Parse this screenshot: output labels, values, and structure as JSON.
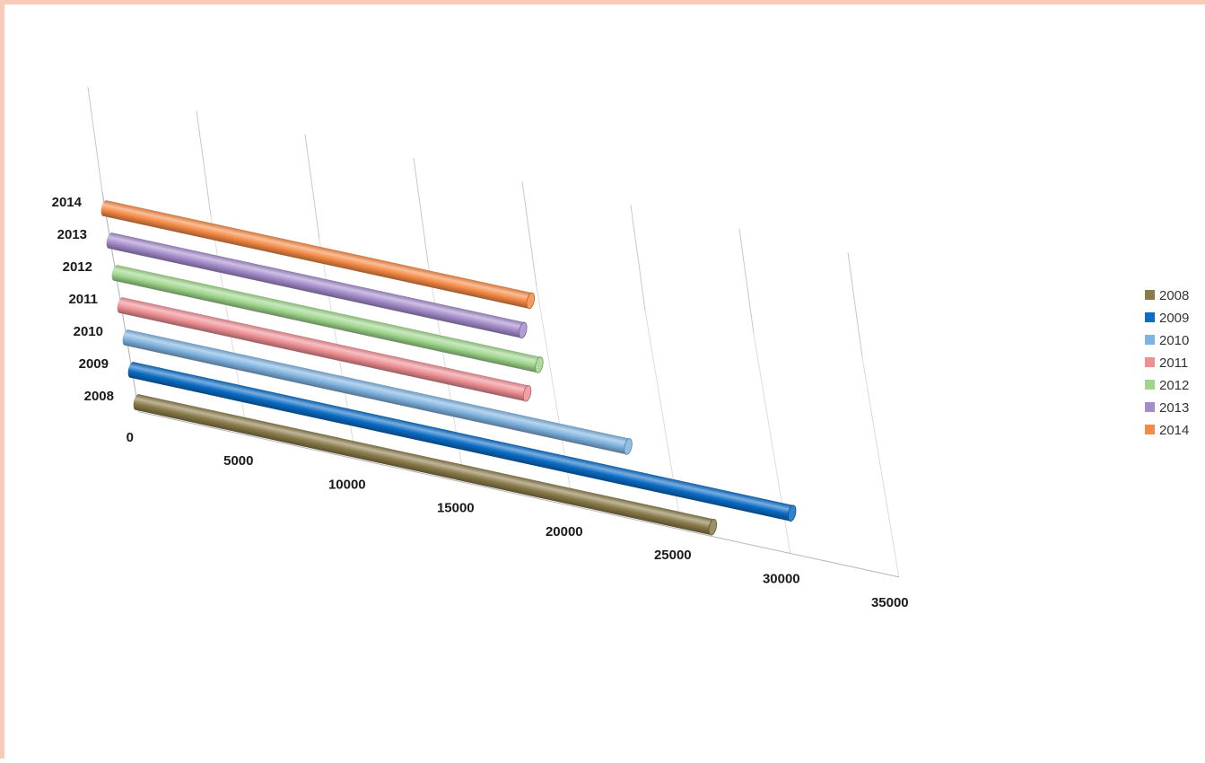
{
  "chart_data": {
    "type": "bar",
    "orientation": "horizontal",
    "style": "3d-cylinder",
    "title": "",
    "xlabel": "",
    "ylabel": "",
    "xlim": [
      0,
      35000
    ],
    "x_ticks": [
      0,
      5000,
      10000,
      15000,
      20000,
      25000,
      30000,
      35000
    ],
    "x_tick_labels": [
      "0",
      "5000",
      "10000",
      "15000",
      "20000",
      "25000",
      "30000",
      "35000"
    ],
    "categories": [
      "2008",
      "2009",
      "2010",
      "2011",
      "2012",
      "2013",
      "2014"
    ],
    "values": [
      26500,
      30400,
      23100,
      18700,
      19500,
      19000,
      19600
    ],
    "colors": [
      "#8a7b4a",
      "#0a6cc4",
      "#7fb3e0",
      "#ee8f94",
      "#9fd68c",
      "#a58ccc",
      "#f58a45"
    ],
    "grid": true,
    "legend": {
      "position": "right",
      "entries": [
        "2008",
        "2009",
        "2010",
        "2011",
        "2012",
        "2013",
        "2014"
      ]
    }
  }
}
